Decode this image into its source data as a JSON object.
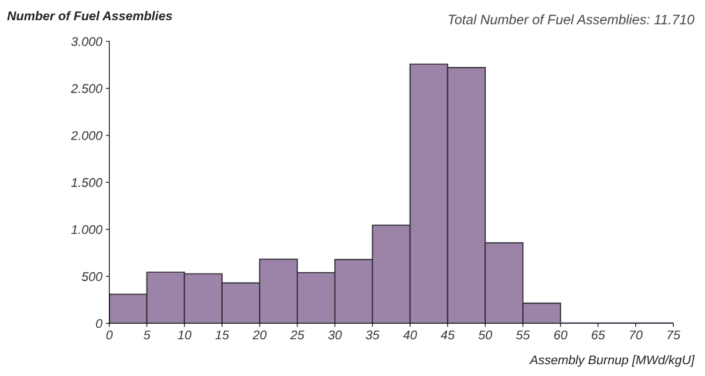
{
  "chart_data": {
    "type": "histogram",
    "ylabel": "Number of Fuel Assemblies",
    "xlabel": "Assembly Burnup [MWd/kgU]",
    "annotations": [
      "Total Number of Fuel Assemblies: 11.710"
    ],
    "bins": [
      0,
      5,
      10,
      15,
      20,
      25,
      30,
      35,
      40,
      45,
      50,
      55,
      60,
      65,
      70,
      75
    ],
    "values": [
      310,
      544,
      527,
      430,
      683,
      540,
      679,
      1045,
      2757,
      2721,
      857,
      215,
      0,
      0,
      0
    ],
    "color": "#9c84a8",
    "xlim": [
      0,
      75
    ],
    "xticks": [
      0,
      5,
      10,
      15,
      20,
      25,
      30,
      35,
      40,
      45,
      50,
      55,
      60,
      65,
      70,
      75
    ],
    "ylim": [
      0,
      3000
    ],
    "yticks": [
      0,
      {
        "value": 500,
        "label": "500"
      },
      {
        "value": 1000,
        "label": "1.000"
      },
      {
        "value": 1500,
        "label": "1.500"
      },
      {
        "value": 2000,
        "label": "2.000"
      },
      {
        "value": 2500,
        "label": "2.500"
      },
      {
        "value": 3000,
        "label": "3.000"
      }
    ],
    "grid": false,
    "legend": false
  }
}
